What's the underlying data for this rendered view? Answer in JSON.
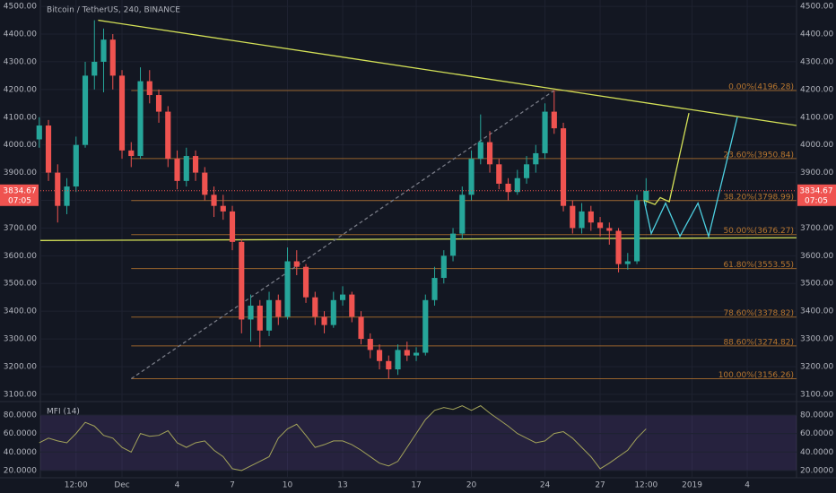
{
  "chart_data": [
    {
      "type": "candlestick",
      "title": "Bitcoin / TetherUS, 240, BINANCE",
      "x": [
        -4.5,
        -4,
        -3.5,
        -3,
        -2.5,
        -2,
        -1.5,
        -1,
        -0.5,
        0,
        0.5,
        1,
        1.5,
        2,
        2.5,
        3,
        3.5,
        4,
        4.5,
        5,
        5.5,
        6,
        6.5,
        7,
        7.5,
        8,
        8.5,
        9,
        9.5,
        10,
        10.5,
        11,
        11.5,
        12,
        12.5,
        13,
        13.5,
        14,
        14.5,
        15,
        15.5,
        16,
        16.5,
        17,
        17.5,
        18,
        18.5,
        19,
        19.5,
        20,
        20.5,
        21,
        21.5,
        22,
        22.5,
        23,
        23.5,
        24,
        24.5,
        25,
        25.5,
        26,
        26.5,
        27,
        27.5,
        28,
        28.5
      ],
      "open": [
        4020,
        4070,
        3900,
        3780,
        3850,
        4000,
        4250,
        4300,
        4380,
        4250,
        3980,
        3960,
        4230,
        4180,
        4120,
        3950,
        3870,
        3960,
        3900,
        3820,
        3780,
        3760,
        3650,
        3370,
        3420,
        3330,
        3440,
        3380,
        3580,
        3560,
        3450,
        3380,
        3350,
        3440,
        3460,
        3380,
        3300,
        3260,
        3220,
        3190,
        3260,
        3240,
        3250,
        3440,
        3520,
        3600,
        3680,
        3820,
        3950,
        4010,
        3930,
        3860,
        3830,
        3880,
        3930,
        3970,
        4120,
        4060,
        3780,
        3700,
        3760,
        3720,
        3700,
        3690,
        3570,
        3580,
        3800
      ],
      "high": [
        4100,
        4090,
        3930,
        3880,
        4030,
        4300,
        4450,
        4420,
        4400,
        4270,
        4010,
        4280,
        4270,
        4200,
        4140,
        3980,
        3990,
        3980,
        3920,
        3850,
        3820,
        3780,
        3660,
        3460,
        3440,
        3470,
        3460,
        3630,
        3620,
        3570,
        3470,
        3400,
        3470,
        3490,
        3470,
        3400,
        3320,
        3280,
        3240,
        3280,
        3290,
        3270,
        3460,
        3560,
        3620,
        3700,
        3850,
        3980,
        4110,
        4050,
        3950,
        3880,
        3910,
        3960,
        4000,
        4150,
        4196,
        4080,
        3800,
        3790,
        3780,
        3740,
        3720,
        3700,
        3610,
        3820,
        3880
      ],
      "low": [
        3990,
        3870,
        3720,
        3750,
        3830,
        3990,
        4200,
        4190,
        4200,
        3950,
        3920,
        3950,
        4150,
        4080,
        3920,
        3840,
        3850,
        3870,
        3800,
        3740,
        3730,
        3620,
        3320,
        3290,
        3270,
        3310,
        3350,
        3370,
        3530,
        3430,
        3350,
        3320,
        3340,
        3420,
        3360,
        3280,
        3230,
        3190,
        3156,
        3170,
        3220,
        3220,
        3240,
        3420,
        3500,
        3580,
        3660,
        3800,
        3930,
        3900,
        3840,
        3800,
        3820,
        3860,
        3900,
        3950,
        4040,
        3760,
        3680,
        3680,
        3690,
        3670,
        3640,
        3540,
        3550,
        3570,
        3780
      ],
      "close": [
        4070,
        3900,
        3780,
        3850,
        4000,
        4250,
        4300,
        4380,
        4250,
        3980,
        3960,
        4230,
        4180,
        4120,
        3950,
        3870,
        3960,
        3900,
        3820,
        3780,
        3760,
        3650,
        3370,
        3420,
        3330,
        3440,
        3380,
        3580,
        3560,
        3450,
        3380,
        3350,
        3440,
        3460,
        3380,
        3300,
        3260,
        3220,
        3190,
        3260,
        3240,
        3250,
        3440,
        3520,
        3600,
        3680,
        3820,
        3950,
        4010,
        3930,
        3860,
        3830,
        3880,
        3930,
        3970,
        4120,
        4060,
        3780,
        3700,
        3760,
        3720,
        3700,
        3690,
        3570,
        3580,
        3800,
        3834.67
      ],
      "up_color": "#26a69a",
      "down_color": "#ef5350",
      "xlim": [
        -4.44,
        36.68
      ],
      "xticks": [
        {
          "value": -2.5,
          "label": "12:00"
        },
        {
          "value": 0,
          "label": "Dec"
        },
        {
          "value": 3,
          "label": "4"
        },
        {
          "value": 6,
          "label": "7"
        },
        {
          "value": 9,
          "label": "10"
        },
        {
          "value": 12,
          "label": "13"
        },
        {
          "value": 16,
          "label": "17"
        },
        {
          "value": 19,
          "label": "20"
        },
        {
          "value": 23,
          "label": "24"
        },
        {
          "value": 26,
          "label": "27"
        },
        {
          "value": 28.5,
          "label": "12:00"
        },
        {
          "value": 31,
          "label": "2019"
        },
        {
          "value": 34,
          "label": "4"
        }
      ],
      "ylim": [
        3077,
        4523
      ],
      "yticks": [
        {
          "value": 3100,
          "label": "3100.00"
        },
        {
          "value": 3200,
          "label": "3200.00"
        },
        {
          "value": 3300,
          "label": "3300.00"
        },
        {
          "value": 3400,
          "label": "3400.00"
        },
        {
          "value": 3500,
          "label": "3500.00"
        },
        {
          "value": 3600,
          "label": "3600.00"
        },
        {
          "value": 3700,
          "label": "3700.00"
        },
        {
          "value": 3800,
          "label": "3800.00"
        },
        {
          "value": 3900,
          "label": "3900.00"
        },
        {
          "value": 4000,
          "label": "4000.00"
        },
        {
          "value": 4100,
          "label": "4100.00"
        },
        {
          "value": 4200,
          "label": "4200.00"
        },
        {
          "value": 4300,
          "label": "4300.00"
        },
        {
          "value": 4400,
          "label": "4400.00"
        },
        {
          "value": 4500,
          "label": "4500.00"
        }
      ],
      "countdown": "07:05",
      "fib_color": "#b9772f",
      "fib_start": 0.5,
      "fib_levels": [
        {
          "value": 4196.28,
          "label": "0.00%(4196.28)"
        },
        {
          "value": 3950.84,
          "label": "23.60%(3950.84)"
        },
        {
          "value": 3798.99,
          "label": "38.20%(3798.99)"
        },
        {
          "value": 3676.27,
          "label": "50.00%(3676.27)"
        },
        {
          "value": 3553.55,
          "label": "61.80%(3553.55)"
        },
        {
          "value": 3378.82,
          "label": "78.60%(3378.82)"
        },
        {
          "value": 3274.82,
          "label": "88.60%(3274.82)"
        },
        {
          "value": 3156.26,
          "label": "100.00%(3156.26)"
        }
      ],
      "trendlines": [
        {
          "color": "#d4e157",
          "dashed": false,
          "x": [
            -1.3,
            36.68
          ],
          "y": [
            4450,
            4070
          ]
        },
        {
          "color": "#d4e157",
          "dashed": false,
          "x": [
            -4.44,
            36.68
          ],
          "y": [
            3655,
            3665
          ]
        },
        {
          "color": "#787b86",
          "dashed": true,
          "x": [
            0.5,
            23.5
          ],
          "y": [
            3156.26,
            4196.28
          ]
        }
      ],
      "projections": [
        {
          "color": "#4dd0e1",
          "x": [
            28.39,
            28.78,
            29.56,
            30.34,
            31.32,
            31.9,
            33.46
          ],
          "y": [
            3800,
            3680,
            3790,
            3670,
            3790,
            3670,
            4100
          ]
        },
        {
          "color": "#d4e157",
          "x": [
            28.39,
            28.98,
            29.27,
            29.76,
            30.83
          ],
          "y": [
            3800,
            3785,
            3810,
            3795,
            4115
          ]
        }
      ]
    },
    {
      "type": "line",
      "title": "MFI (14)",
      "color": "#a3a35a",
      "x": [
        -4.5,
        -4,
        -3.5,
        -3,
        -2.5,
        -2,
        -1.5,
        -1,
        -0.5,
        0,
        0.5,
        1,
        1.5,
        2,
        2.5,
        3,
        3.5,
        4,
        4.5,
        5,
        5.5,
        6,
        6.5,
        7,
        7.5,
        8,
        8.5,
        9,
        9.5,
        10,
        10.5,
        11,
        11.5,
        12,
        12.5,
        13,
        13.5,
        14,
        14.5,
        15,
        15.5,
        16,
        16.5,
        17,
        17.5,
        18,
        18.5,
        19,
        19.5,
        20,
        20.5,
        21,
        21.5,
        22,
        22.5,
        23,
        23.5,
        24,
        24.5,
        25,
        25.5,
        26,
        26.5,
        27,
        27.5,
        28,
        28.5
      ],
      "values": [
        50,
        55,
        52,
        50,
        60,
        72,
        68,
        58,
        55,
        45,
        40,
        60,
        57,
        58,
        63,
        50,
        45,
        50,
        52,
        42,
        35,
        22,
        20,
        25,
        30,
        35,
        55,
        65,
        70,
        58,
        45,
        48,
        52,
        52,
        48,
        42,
        35,
        28,
        25,
        30,
        45,
        60,
        75,
        85,
        88,
        86,
        90,
        85,
        90,
        82,
        75,
        68,
        60,
        55,
        50,
        52,
        60,
        62,
        55,
        45,
        35,
        22,
        28,
        35,
        42,
        55,
        65
      ],
      "band": [
        20,
        80
      ],
      "ylim": [
        13.2,
        93.5
      ],
      "yticks": [
        {
          "value": 20,
          "label": "20.0000"
        },
        {
          "value": 40,
          "label": "40.0000"
        },
        {
          "value": 60,
          "label": "60.0000"
        },
        {
          "value": 80,
          "label": "80.0000"
        }
      ]
    }
  ]
}
